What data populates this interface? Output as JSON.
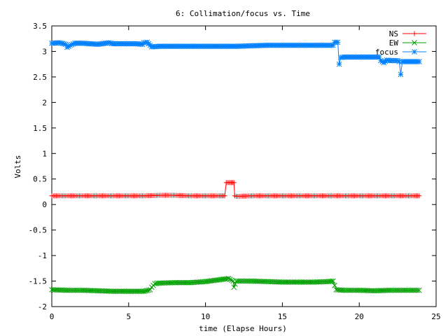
{
  "chart_data": {
    "type": "line",
    "title": "6: Collimation/focus vs. Time",
    "xlabel": "time (Elapse Hours)",
    "ylabel": "Volts",
    "xlim": [
      0,
      25
    ],
    "ylim": [
      -2,
      3.5
    ],
    "xticks": [
      0,
      5,
      10,
      15,
      20,
      25
    ],
    "yticks": [
      -2,
      -1.5,
      -1,
      -0.5,
      0,
      0.5,
      1,
      1.5,
      2,
      2.5,
      3,
      3.5
    ],
    "xtick_labels": [
      "0",
      "5",
      "10",
      "15",
      "20",
      "25"
    ],
    "ytick_labels": [
      "-2",
      "-1.5",
      "-1",
      "-0.5",
      "0",
      "0.5",
      "1",
      "1.5",
      "2",
      "2.5",
      "3",
      "3.5"
    ],
    "grid": false,
    "legend_position": "top-right",
    "series": [
      {
        "name": "NS",
        "color": "#ff0000",
        "marker": "plus",
        "points": [
          [
            0,
            0.17
          ],
          [
            1,
            0.17
          ],
          [
            2,
            0.17
          ],
          [
            3,
            0.17
          ],
          [
            4,
            0.17
          ],
          [
            5,
            0.17
          ],
          [
            6,
            0.17
          ],
          [
            7,
            0.18
          ],
          [
            8,
            0.18
          ],
          [
            9,
            0.17
          ],
          [
            10,
            0.17
          ],
          [
            11,
            0.17
          ],
          [
            11.25,
            0.17
          ],
          [
            11.35,
            0.43
          ],
          [
            11.6,
            0.43
          ],
          [
            11.85,
            0.43
          ],
          [
            11.9,
            0.17
          ],
          [
            12,
            0.16
          ],
          [
            13,
            0.17
          ],
          [
            14,
            0.17
          ],
          [
            15,
            0.17
          ],
          [
            16,
            0.17
          ],
          [
            17,
            0.17
          ],
          [
            18,
            0.17
          ],
          [
            19,
            0.17
          ],
          [
            20,
            0.17
          ],
          [
            21,
            0.17
          ],
          [
            22,
            0.17
          ],
          [
            23,
            0.17
          ],
          [
            23.9,
            0.17
          ]
        ]
      },
      {
        "name": "EW",
        "color": "#00a000",
        "marker": "cross",
        "points": [
          [
            0,
            -1.67
          ],
          [
            1,
            -1.68
          ],
          [
            2,
            -1.68
          ],
          [
            3,
            -1.69
          ],
          [
            4,
            -1.7
          ],
          [
            5,
            -1.7
          ],
          [
            6,
            -1.7
          ],
          [
            6.4,
            -1.67
          ],
          [
            6.5,
            -1.62
          ],
          [
            6.7,
            -1.55
          ],
          [
            7,
            -1.54
          ],
          [
            8,
            -1.53
          ],
          [
            9,
            -1.53
          ],
          [
            10,
            -1.51
          ],
          [
            11,
            -1.47
          ],
          [
            11.5,
            -1.45
          ],
          [
            11.8,
            -1.5
          ],
          [
            11.85,
            -1.62
          ],
          [
            12,
            -1.5
          ],
          [
            13,
            -1.5
          ],
          [
            14,
            -1.51
          ],
          [
            15,
            -1.52
          ],
          [
            16,
            -1.52
          ],
          [
            17,
            -1.52
          ],
          [
            18,
            -1.51
          ],
          [
            18.3,
            -1.5
          ],
          [
            18.5,
            -1.67
          ],
          [
            19,
            -1.68
          ],
          [
            20,
            -1.68
          ],
          [
            21,
            -1.69
          ],
          [
            22,
            -1.68
          ],
          [
            23,
            -1.68
          ],
          [
            23.9,
            -1.68
          ]
        ]
      },
      {
        "name": "focus",
        "color": "#0080ff",
        "marker": "star",
        "points": [
          [
            0,
            3.16
          ],
          [
            0.5,
            3.17
          ],
          [
            0.9,
            3.14
          ],
          [
            1.0,
            3.08
          ],
          [
            1.2,
            3.12
          ],
          [
            1.5,
            3.16
          ],
          [
            2,
            3.16
          ],
          [
            2.5,
            3.15
          ],
          [
            3,
            3.14
          ],
          [
            3.5,
            3.16
          ],
          [
            3.7,
            3.17
          ],
          [
            4,
            3.15
          ],
          [
            5,
            3.15
          ],
          [
            5.5,
            3.15
          ],
          [
            5.9,
            3.14
          ],
          [
            6.0,
            3.17
          ],
          [
            6.2,
            3.18
          ],
          [
            6.4,
            3.12
          ],
          [
            6.5,
            3.09
          ],
          [
            7,
            3.1
          ],
          [
            8,
            3.1
          ],
          [
            9,
            3.1
          ],
          [
            10,
            3.1
          ],
          [
            11,
            3.1
          ],
          [
            12,
            3.1
          ],
          [
            13,
            3.11
          ],
          [
            14,
            3.12
          ],
          [
            15,
            3.12
          ],
          [
            16,
            3.12
          ],
          [
            17,
            3.12
          ],
          [
            18,
            3.12
          ],
          [
            18.3,
            3.12
          ],
          [
            18.4,
            3.18
          ],
          [
            18.6,
            3.18
          ],
          [
            18.7,
            2.75
          ],
          [
            18.8,
            2.88
          ],
          [
            19,
            2.89
          ],
          [
            20,
            2.89
          ],
          [
            21,
            2.89
          ],
          [
            21.3,
            2.89
          ],
          [
            21.4,
            2.82
          ],
          [
            21.6,
            2.78
          ],
          [
            21.8,
            2.83
          ],
          [
            22,
            2.82
          ],
          [
            22.5,
            2.82
          ],
          [
            22.6,
            2.8
          ],
          [
            22.7,
            2.55
          ],
          [
            22.8,
            2.8
          ],
          [
            23,
            2.8
          ],
          [
            23.9,
            2.8
          ]
        ]
      }
    ]
  }
}
